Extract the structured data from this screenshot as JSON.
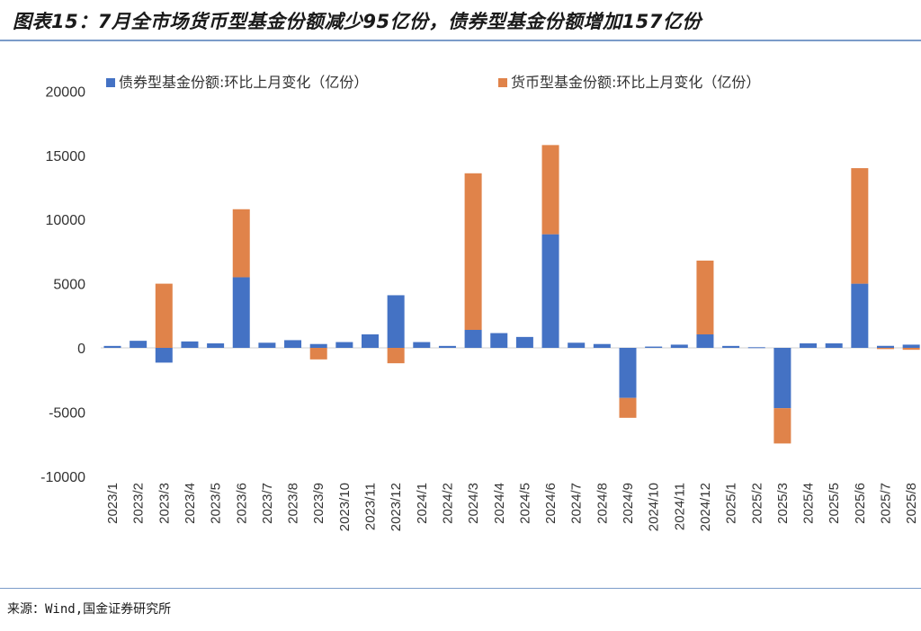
{
  "header": {
    "title": "图表15：7月全市场货币型基金份额减少95亿份，债券型基金份额增加157亿份"
  },
  "footer": {
    "source": "来源：Wind,国金证券研究所"
  },
  "colors": {
    "bond": "#4472c4",
    "money": "#e0834a",
    "rule": "#7b9cc9"
  },
  "chart_data": {
    "type": "bar",
    "stacked": true,
    "title": "7月全市场货币型基金份额减少95亿份，债券型基金份额增加157亿份",
    "xlabel": "",
    "ylabel": "",
    "ylim": [
      -10000,
      20000
    ],
    "yticks": [
      20000,
      15000,
      10000,
      5000,
      0,
      -5000,
      -10000
    ],
    "grid": false,
    "legend_position": "top",
    "categories": [
      "2023/1",
      "2023/2",
      "2023/3",
      "2023/4",
      "2023/5",
      "2023/6",
      "2023/7",
      "2023/8",
      "2023/9",
      "2023/10",
      "2023/11",
      "2023/12",
      "2024/1",
      "2024/2",
      "2024/3",
      "2024/4",
      "2024/5",
      "2024/6",
      "2024/7",
      "2024/8",
      "2024/9",
      "2024/10",
      "2024/11",
      "2024/12",
      "2025/1",
      "2025/2",
      "2025/3",
      "2025/4",
      "2025/5",
      "2025/6",
      "2025/7",
      "2025/8"
    ],
    "series": [
      {
        "name": "债券型基金份额:环比上月变化（亿份）",
        "color": "#4472c4",
        "values": [
          150,
          550,
          -1150,
          500,
          350,
          5500,
          400,
          600,
          300,
          450,
          1050,
          4100,
          450,
          150,
          1400,
          1150,
          850,
          8850,
          400,
          300,
          -3900,
          100,
          250,
          1050,
          150,
          50,
          -4700,
          350,
          350,
          5000,
          157,
          250
        ]
      },
      {
        "name": "货币型基金份额:环比上月变化（亿份）",
        "color": "#e0834a",
        "values": [
          0,
          0,
          5000,
          0,
          0,
          5300,
          0,
          0,
          -900,
          0,
          0,
          -1200,
          0,
          0,
          12200,
          0,
          0,
          6950,
          0,
          0,
          -1550,
          0,
          0,
          5750,
          0,
          0,
          -2750,
          0,
          0,
          9000,
          -95,
          -150
        ]
      }
    ]
  }
}
